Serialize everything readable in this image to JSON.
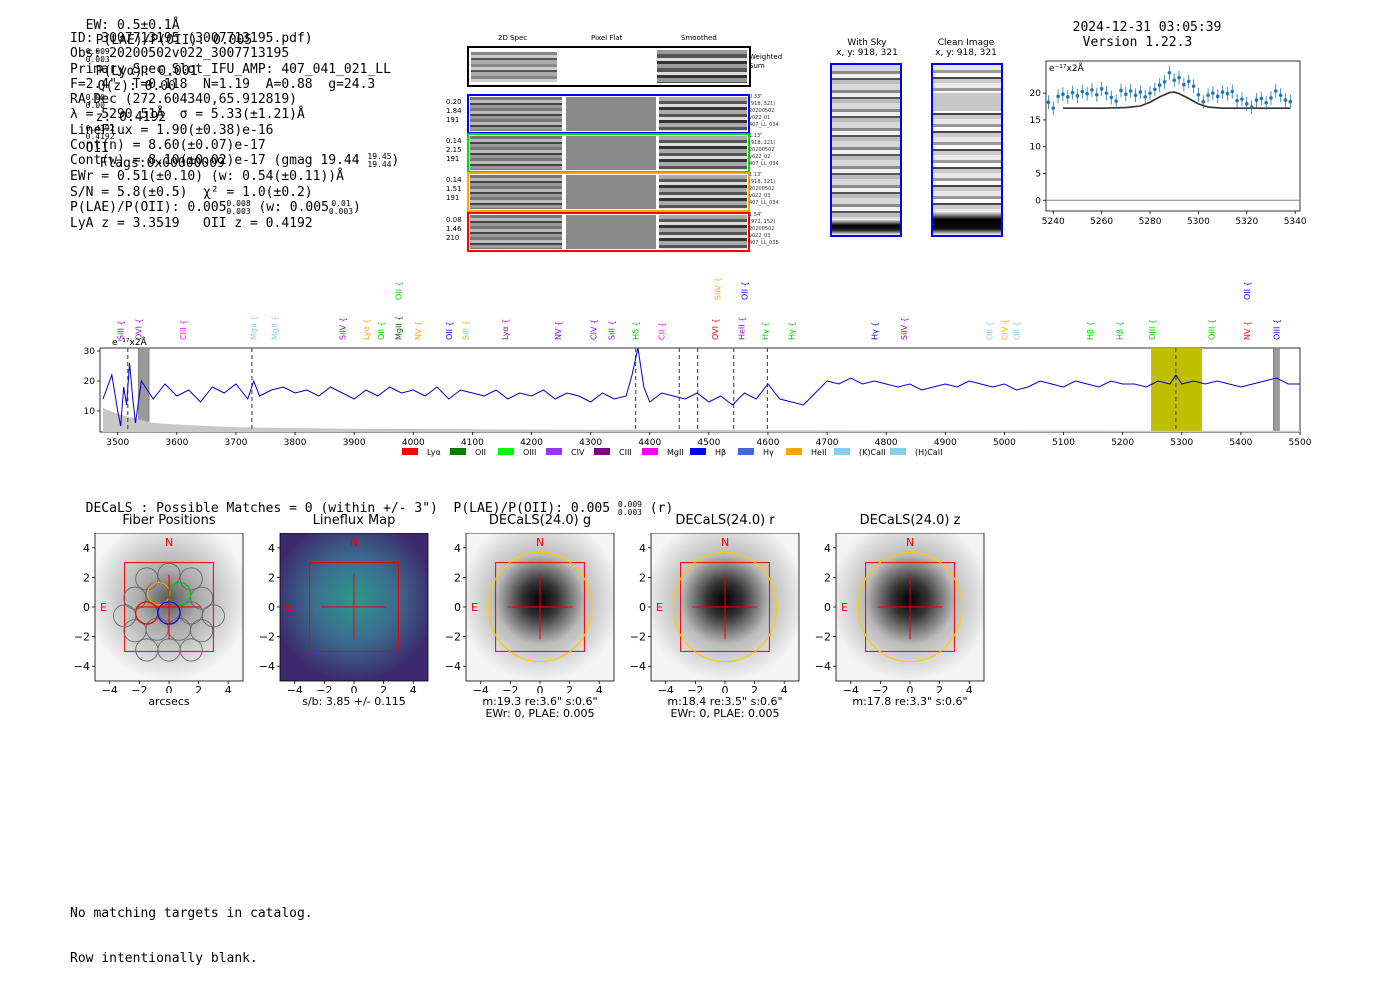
{
  "header": {
    "ew": "EW: 0.5±0.1Å",
    "plae": "P(LAE)/P(OII): 0.005",
    "plae_hi": "0.009",
    "plae_lo": "0.003",
    "plya": "P(Lyα): 0.001",
    "qz": "Q(z): 0.00",
    "qz_hi": "0.00",
    "qz_lo": "0.00",
    "z": "z: 0.4192",
    "z_hi": "0.4192",
    "z_lo": "0.4192",
    "z_line": "OII",
    "flags": "Flags:0x00000009",
    "date": "2024-12-31 03:05:39",
    "version": "Version 1.22.3"
  },
  "info": {
    "id": "ID: 3007713195 (3007713195.pdf)",
    "obs": "Obs: 20200502v022_3007713195",
    "primary": "Primary Spec_Slot_IFU_AMP: 407_041_021_LL",
    "fparams": "F=2.4\"  T=0.118  N=1.19  A=0.88  g=24.3",
    "radec": "RA,Dec (272.604340,65.912819)",
    "lambda": "λ = 5290.51Å  σ = 5.33(±1.21)Å",
    "lineflux": "LineFlux = 1.90(±0.38)e-16",
    "contn": "Cont(n) = 8.60(±0.07)e-17",
    "contw": "Cont(w) = 8.10(±0.02)e-17 (gmag 19.44",
    "gmag_hi": "19.45",
    "gmag_lo": "19.44",
    "ewr": "EWr = 0.51(±0.10) (w: 0.54(±0.11))Å",
    "sn": "S/N = 5.8(±0.5)  χ² = 1.0(±0.2)",
    "plae2": "P(LAE)/P(OII): 0.005",
    "plae2_hi": "0.008",
    "plae2_lo": "0.003",
    "plae2_w": "(w: 0.005",
    "plae2_w_hi": "0.01",
    "plae2_w_lo": "0.003",
    "lyaz": "LyA z = 3.3519   OII z = 0.4192"
  },
  "cutouts": {
    "col_2d": "2D Spec",
    "col_flat": "Pixel Flat",
    "col_smooth": "Smoothed",
    "weighted": "Weighted\nSum",
    "rows": [
      {
        "l1": "0.20",
        "l2": "1.84",
        "l3": "191",
        "r": "0.33\"\n(918, 321)\n20200502\nv022_01\n407_LL_034",
        "color": "#0000ff"
      },
      {
        "l1": "0.14",
        "l2": "2.15",
        "l3": "191",
        "r": "1.13\"\n(918, 321)\n20200502\nv022_02\n407_LL_034",
        "color": "#00dd00"
      },
      {
        "l1": "0.14",
        "l2": "1.51",
        "l3": "191",
        "r": "1.13\"\n(918, 321)\n20200502\nv022_03\n407_LL_034",
        "color": "#ffa500"
      },
      {
        "l1": "0.08",
        "l2": "1.46",
        "l3": "210",
        "r": "1.54\"\n(972, 152)\n20200502\nv022_03\n407_LL_035",
        "color": "#ff0000"
      }
    ]
  },
  "sky": {
    "with_sky_title": "With Sky",
    "with_sky_sub": "x, y: 918, 321",
    "clean_title": "Clean Image",
    "clean_sub": "x, y: 918, 321"
  },
  "zoom_chart_data": {
    "type": "scatter",
    "unit_label": "e⁻¹⁷x2Å",
    "xlim": [
      5237,
      5342
    ],
    "ylim": [
      -2,
      26
    ],
    "xticks": [
      5240,
      5260,
      5280,
      5300,
      5320,
      5340
    ],
    "yticks": [
      0,
      5,
      10,
      15,
      20
    ],
    "points_x": [
      5238,
      5240,
      5242,
      5244,
      5246,
      5248,
      5250,
      5252,
      5254,
      5256,
      5258,
      5260,
      5262,
      5264,
      5266,
      5268,
      5270,
      5272,
      5274,
      5276,
      5278,
      5280,
      5282,
      5284,
      5286,
      5288,
      5290,
      5292,
      5294,
      5296,
      5298,
      5300,
      5302,
      5304,
      5306,
      5308,
      5310,
      5312,
      5314,
      5316,
      5318,
      5320,
      5322,
      5324,
      5326,
      5328,
      5330,
      5332,
      5334,
      5336,
      5338
    ],
    "points_y": [
      18.3,
      17.2,
      19.4,
      19.8,
      19.3,
      20.1,
      19.5,
      20.3,
      19.9,
      20.6,
      19.7,
      20.8,
      20.0,
      19.2,
      18.5,
      20.5,
      19.8,
      20.4,
      19.6,
      20.2,
      19.3,
      20.0,
      20.7,
      21.5,
      22.1,
      23.8,
      22.4,
      22.9,
      21.6,
      22.2,
      21.3,
      19.7,
      18.4,
      19.6,
      20.0,
      19.4,
      20.2,
      19.9,
      20.3,
      18.6,
      18.9,
      18.0,
      17.4,
      18.7,
      19.0,
      18.2,
      19.1,
      20.4,
      19.6,
      18.7,
      18.4
    ],
    "model_x": [
      5244,
      5260,
      5270,
      5276,
      5280,
      5284,
      5288,
      5290,
      5292,
      5296,
      5300,
      5304,
      5310,
      5320,
      5338
    ],
    "model_y": [
      17.2,
      17.2,
      17.3,
      17.6,
      18.3,
      19.3,
      20.1,
      20.2,
      19.9,
      19.0,
      18.0,
      17.4,
      17.2,
      17.2,
      17.2
    ]
  },
  "chart_data": {
    "type": "line",
    "title": "",
    "unit_label": "e⁻¹⁷x2Å",
    "xlim": [
      3470,
      5500
    ],
    "ylim": [
      3,
      31
    ],
    "xticks": [
      3500,
      3600,
      3700,
      3800,
      3900,
      4000,
      4100,
      4200,
      4300,
      4400,
      4500,
      4600,
      4700,
      4800,
      4900,
      5000,
      5100,
      5200,
      5300,
      5400,
      5500
    ],
    "yticks": [
      10,
      20,
      30
    ],
    "spectrum_x": [
      3475,
      3490,
      3500,
      3505,
      3510,
      3515,
      3520,
      3525,
      3530,
      3540,
      3550,
      3560,
      3580,
      3600,
      3620,
      3640,
      3660,
      3680,
      3700,
      3720,
      3730,
      3740,
      3760,
      3780,
      3800,
      3820,
      3840,
      3860,
      3880,
      3900,
      3920,
      3940,
      3960,
      3980,
      4000,
      4020,
      4040,
      4060,
      4080,
      4100,
      4120,
      4140,
      4160,
      4180,
      4200,
      4220,
      4240,
      4260,
      4280,
      4300,
      4320,
      4340,
      4360,
      4370,
      4380,
      4390,
      4400,
      4420,
      4440,
      4460,
      4480,
      4500,
      4520,
      4540,
      4560,
      4580,
      4600,
      4620,
      4640,
      4660,
      4680,
      4700,
      4720,
      4740,
      4760,
      4780,
      4800,
      4820,
      4840,
      4860,
      4880,
      4900,
      4920,
      4940,
      4960,
      4980,
      5000,
      5020,
      5040,
      5060,
      5080,
      5100,
      5120,
      5140,
      5160,
      5180,
      5200,
      5220,
      5240,
      5260,
      5280,
      5290,
      5300,
      5320,
      5340,
      5360,
      5380,
      5400,
      5420,
      5440,
      5460,
      5480,
      5500
    ],
    "spectrum_y": [
      14,
      22,
      10,
      5,
      18,
      12,
      26,
      15,
      6,
      20,
      17,
      14,
      19,
      15,
      17,
      13,
      18,
      16,
      19,
      14,
      20,
      15,
      17,
      18,
      16,
      17,
      15,
      18,
      16,
      14,
      17,
      15,
      18,
      16,
      17,
      15,
      18,
      14,
      17,
      16,
      15,
      17,
      14,
      16,
      15,
      17,
      14,
      16,
      15,
      13,
      16,
      14,
      15,
      22,
      31,
      18,
      13,
      16,
      15,
      14,
      16,
      13,
      15,
      12,
      16,
      14,
      19,
      14,
      13,
      12,
      16,
      20,
      19,
      21,
      19,
      20,
      19,
      18,
      19,
      17,
      18,
      19,
      18,
      20,
      19,
      18,
      19,
      17,
      18,
      20,
      19,
      18,
      20,
      19,
      18,
      20,
      19,
      19,
      18,
      20,
      19,
      22,
      19,
      20,
      19,
      20,
      19,
      18,
      19,
      20,
      21,
      19,
      19
    ],
    "sky_x": [
      3475,
      3500,
      3520,
      3540,
      3560,
      3600,
      3650,
      3700,
      3800,
      3900,
      4000,
      4100,
      4200,
      4400,
      4600,
      4800,
      5000,
      5200,
      5500
    ],
    "sky_y": [
      11,
      9,
      8,
      7,
      6,
      5.5,
      5,
      4.6,
      4.3,
      4.1,
      4.0,
      3.9,
      3.8,
      3.7,
      3.6,
      3.5,
      3.5,
      3.4,
      3.4
    ],
    "dashed_lines_x": [
      3517,
      3727,
      4376,
      4450,
      4481,
      4542,
      4599,
      5290
    ],
    "highlight_band": [
      5248,
      5334
    ],
    "grey_bands": [
      [
        3535,
        3553
      ],
      [
        5455,
        5465
      ]
    ],
    "emission_labels": [
      {
        "x": 3505,
        "name": "SiII",
        "color": "#9400d3",
        "tier": "low"
      },
      {
        "x": 3535,
        "name": "OVI",
        "color": "#9400d3",
        "tier": "low"
      },
      {
        "x": 3610,
        "name": "CIII",
        "color": "#ff00ff",
        "tier": "low"
      },
      {
        "x": 3730,
        "name": "MgII",
        "color": "#87ceeb",
        "tier": "low"
      },
      {
        "x": 3765,
        "name": "MgII",
        "color": "#87ceeb",
        "tier": "low"
      },
      {
        "x": 3880,
        "name": "SiIV",
        "color": "#9400d3",
        "tier": "low"
      },
      {
        "x": 3920,
        "name": "Lyα",
        "color": "#ffa500",
        "tier": "low"
      },
      {
        "x": 3945,
        "name": "OII",
        "color": "#00cc00",
        "tier": "low"
      },
      {
        "x": 3975,
        "name": "MgII",
        "color": "#006400",
        "tier": "low"
      },
      {
        "x": 3975,
        "name": "OII",
        "color": "#00cc00",
        "tier": "high"
      },
      {
        "x": 4008,
        "name": "NV",
        "color": "#ffa500",
        "tier": "low"
      },
      {
        "x": 4060,
        "name": "OII",
        "color": "#0000ff",
        "tier": "low"
      },
      {
        "x": 4088,
        "name": "SiII",
        "color": "#ffa500",
        "tier": "low"
      },
      {
        "x": 4155,
        "name": "Lyα",
        "color": "#9400d3",
        "tier": "low"
      },
      {
        "x": 4245,
        "name": "NV",
        "color": "#9400d3",
        "tier": "low"
      },
      {
        "x": 4305,
        "name": "CIV",
        "color": "#9400d3",
        "tier": "low"
      },
      {
        "x": 4335,
        "name": "SiII",
        "color": "#9400d3",
        "tier": "low"
      },
      {
        "x": 4376,
        "name": "Hδ",
        "color": "#00cc00",
        "tier": "low"
      },
      {
        "x": 4420,
        "name": "CII",
        "color": "#ff00ff",
        "tier": "low"
      },
      {
        "x": 4510,
        "name": "OVI",
        "color": "#ff0000",
        "tier": "low"
      },
      {
        "x": 4515,
        "name": "SiIV",
        "color": "#ffa500",
        "tier": "high"
      },
      {
        "x": 4555,
        "name": "HeII",
        "color": "#9400d3",
        "tier": "low"
      },
      {
        "x": 4560,
        "name": "OII",
        "color": "#0000ff",
        "tier": "high"
      },
      {
        "x": 4595,
        "name": "Hγ",
        "color": "#00cc00",
        "tier": "low"
      },
      {
        "x": 4640,
        "name": "Hγ",
        "color": "#00cc00",
        "tier": "low"
      },
      {
        "x": 4780,
        "name": "Hγ",
        "color": "#0000ff",
        "tier": "low"
      },
      {
        "x": 4830,
        "name": "SiIV",
        "color": "#9400d3",
        "tier": "low"
      },
      {
        "x": 4975,
        "name": "OII",
        "color": "#87ceeb",
        "tier": "low"
      },
      {
        "x": 5000,
        "name": "CIV",
        "color": "#ffa500",
        "tier": "low"
      },
      {
        "x": 5020,
        "name": "OII",
        "color": "#87ceeb",
        "tier": "low"
      },
      {
        "x": 5145,
        "name": "Hβ",
        "color": "#00cc00",
        "tier": "low"
      },
      {
        "x": 5195,
        "name": "Hβ",
        "color": "#00cc00",
        "tier": "low"
      },
      {
        "x": 5250,
        "name": "OIII",
        "color": "#00cc00",
        "tier": "low"
      },
      {
        "x": 5350,
        "name": "OIII",
        "color": "#00cc00",
        "tier": "low"
      },
      {
        "x": 5410,
        "name": "NV",
        "color": "#ff0000",
        "tier": "low"
      },
      {
        "x": 5410,
        "name": "OII",
        "color": "#0000ff",
        "tier": "high"
      },
      {
        "x": 5460,
        "name": "OIII",
        "color": "#0000ff",
        "tier": "low"
      }
    ],
    "legend": [
      {
        "name": "Lyα",
        "color": "#ff0000"
      },
      {
        "name": "OII",
        "color": "#007f00"
      },
      {
        "name": "OIII",
        "color": "#00ff00"
      },
      {
        "name": "CIV",
        "color": "#9933ff"
      },
      {
        "name": "CIII",
        "color": "#800080"
      },
      {
        "name": "MgII",
        "color": "#ff00ff"
      },
      {
        "name": "Hβ",
        "color": "#0000ff"
      },
      {
        "name": "Hγ",
        "color": "#4169e1"
      },
      {
        "name": "HeII",
        "color": "#ffa500"
      },
      {
        "name": "(K)CaII",
        "color": "#87ceeb"
      },
      {
        "name": "(H)CaII",
        "color": "#87ceeb"
      }
    ]
  },
  "decals": {
    "title": "DECaLS : Possible Matches = 0 (within +/- 3\")  P(LAE)/P(OII): 0.005",
    "title_hi": "0.009",
    "title_lo": "0.003",
    "title_suffix": "(r)",
    "north": "N",
    "east": "E",
    "axis_ticks": [
      "4",
      "2",
      "0",
      "−2",
      "−4"
    ],
    "x_ticks": [
      "−4",
      "−2",
      "0",
      "2",
      "4"
    ],
    "panels": [
      {
        "title": "Fiber Positions",
        "cap1": "arcsecs",
        "cap2": ""
      },
      {
        "title": "Lineflux Map",
        "cap1": "s/b: 3.85 +/- 0.115",
        "cap2": ""
      },
      {
        "title": "DECaLS(24.0) g",
        "cap1": "m:19.3  re:3.6\"  s:0.6\"",
        "cap2": "EWr: 0, PLAE: 0.005"
      },
      {
        "title": "DECaLS(24.0) r",
        "cap1": "m:18.4  re:3.5\"  s:0.6\"",
        "cap2": "EWr: 0, PLAE: 0.005"
      },
      {
        "title": "DECaLS(24.0) z",
        "cap1": "m:17.8  re:3.3\"  s:0.6\"",
        "cap2": ""
      }
    ]
  },
  "footer": {
    "line1": "No matching targets in catalog.",
    "line2": "Row intentionally blank."
  }
}
